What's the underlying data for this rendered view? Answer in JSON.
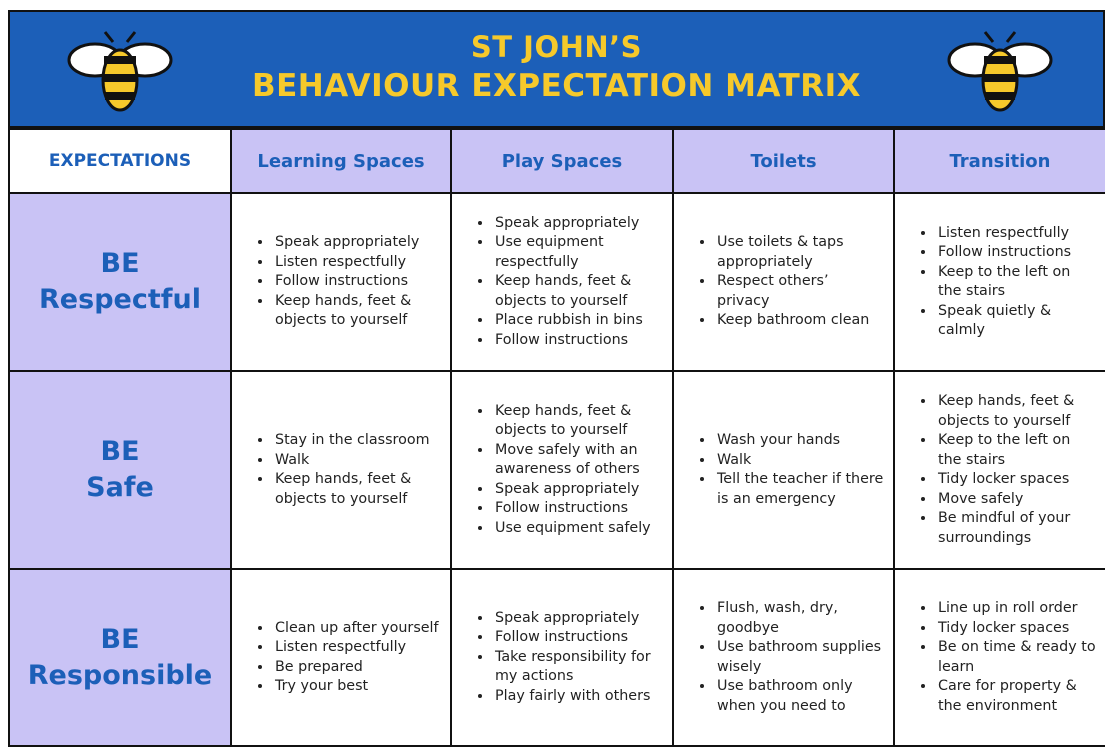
{
  "header": {
    "title_line1": "ST JOHN’S",
    "title_line2": "BEHAVIOUR EXPECTATION MATRIX"
  },
  "table": {
    "columns": [
      "EXPECTATIONS",
      "Learning Spaces",
      "Play Spaces",
      "Toilets",
      "Transition"
    ],
    "rows": [
      {
        "label_line1": "BE",
        "label_line2": "Respectful",
        "cells": [
          [
            "Speak appropriately",
            "Listen respectfully",
            "Follow instructions",
            "Keep hands, feet & objects to yourself"
          ],
          [
            "Speak appropriately",
            "Use equipment respectfully",
            "Keep hands, feet & objects to yourself",
            "Place rubbish in bins",
            "Follow instructions"
          ],
          [
            "Use toilets & taps appropriately",
            "Respect others’ privacy",
            "Keep bathroom clean"
          ],
          [
            "Listen respectfully",
            "Follow instructions",
            "Keep to the left on the stairs",
            "Speak quietly & calmly"
          ]
        ]
      },
      {
        "label_line1": "BE",
        "label_line2": "Safe",
        "cells": [
          [
            "Stay in the classroom",
            "Walk",
            "Keep hands, feet & objects to yourself"
          ],
          [
            "Keep hands, feet & objects to yourself",
            "Move safely with an awareness of others",
            "Speak appropriately",
            "Follow instructions",
            "Use equipment safely"
          ],
          [
            "Wash your hands",
            "Walk",
            "Tell the teacher if there is an emergency"
          ],
          [
            "Keep hands, feet & objects to yourself",
            "Keep to the left on the stairs",
            "Tidy locker spaces",
            "Move safely",
            "Be mindful of your surroundings"
          ]
        ]
      },
      {
        "label_line1": "BE",
        "label_line2": "Responsible",
        "cells": [
          [
            "Clean up after yourself",
            "Listen respectfully",
            "Be prepared",
            "Try your best"
          ],
          [
            "Speak appropriately",
            "Follow instructions",
            "Take responsibility for my actions",
            "Play fairly with others"
          ],
          [
            "Flush, wash, dry, goodbye",
            "Use bathroom supplies wisely",
            "Use bathroom only when you need to"
          ],
          [
            "Line up in roll order",
            "Tidy locker spaces",
            "Be on time & ready to learn",
            "Care for property & the environment"
          ]
        ]
      }
    ]
  }
}
